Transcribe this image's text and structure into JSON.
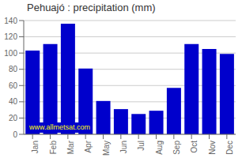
{
  "chart_data": {
    "type": "bar",
    "title": "Pehuajó : precipitation (mm)",
    "categories": [
      "Jan",
      "Feb",
      "Mar",
      "Apr",
      "May",
      "Jun",
      "Jul",
      "Aug",
      "Sep",
      "Oct",
      "Nov",
      "Dec"
    ],
    "values": [
      103,
      111,
      136,
      81,
      41,
      31,
      25,
      29,
      57,
      111,
      105,
      99
    ],
    "color": "#0000CC",
    "ylim": [
      0,
      140
    ],
    "yticks": [
      0,
      20,
      40,
      60,
      80,
      100,
      120,
      140
    ],
    "grid": true,
    "annotations": [
      {
        "text": "www.allmetsat.com",
        "color": "#ffff00"
      }
    ]
  }
}
